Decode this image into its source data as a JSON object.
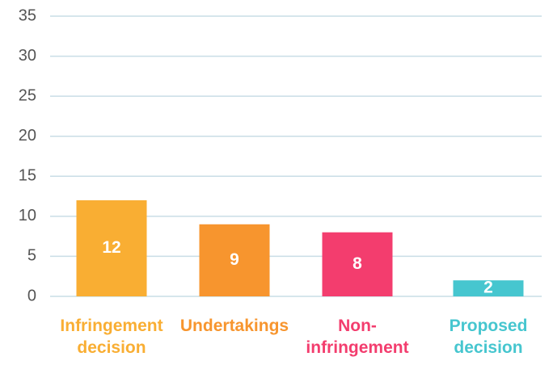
{
  "chart_data": {
    "type": "bar",
    "categories": [
      "Infringement decision",
      "Undertakings",
      "Non-infringement",
      "Proposed decision"
    ],
    "values": [
      12,
      9,
      8,
      2
    ],
    "colors": [
      "#f9ae33",
      "#f7952e",
      "#f33d6e",
      "#46c6cf"
    ],
    "ylim": [
      0,
      35
    ],
    "yticks": [
      0,
      5,
      10,
      15,
      20,
      25,
      30,
      35
    ],
    "grid": true
  }
}
